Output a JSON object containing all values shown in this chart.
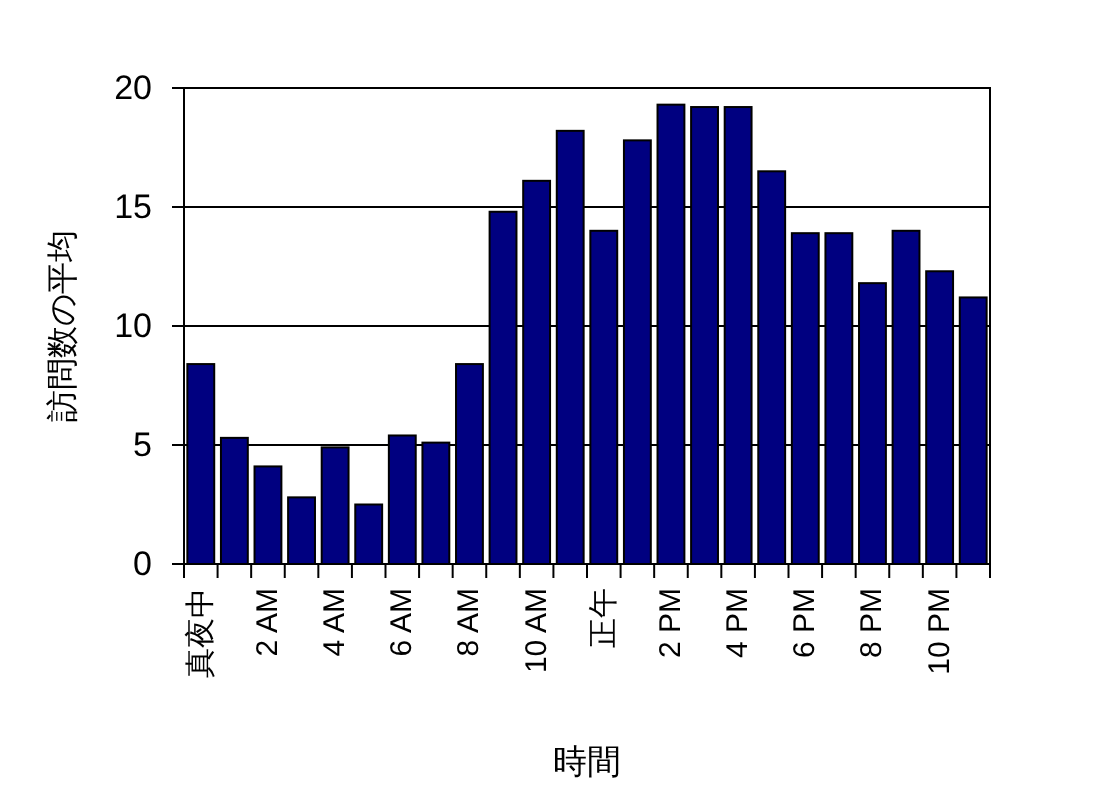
{
  "chart_data": {
    "type": "bar",
    "xlabel": "時間",
    "ylabel": "訪問数の平均",
    "categories": [
      "真夜中",
      null,
      "2 AM",
      null,
      "4 AM",
      null,
      "6 AM",
      null,
      "8 AM",
      null,
      "10 AM",
      null,
      "正午",
      null,
      "2 PM",
      null,
      "4 PM",
      null,
      "6 PM",
      null,
      "8 PM",
      null,
      "10 PM",
      null
    ],
    "values": [
      8.4,
      5.3,
      4.1,
      2.8,
      4.9,
      2.5,
      5.4,
      5.1,
      8.4,
      14.8,
      16.1,
      18.2,
      14.0,
      17.8,
      19.3,
      19.2,
      19.2,
      16.5,
      13.9,
      13.9,
      11.8,
      14.0,
      12.3,
      11.2
    ],
    "color": "#000080",
    "ylim": [
      0,
      20
    ],
    "yticks": [
      0,
      5,
      10,
      15,
      20
    ],
    "grid": "y"
  }
}
